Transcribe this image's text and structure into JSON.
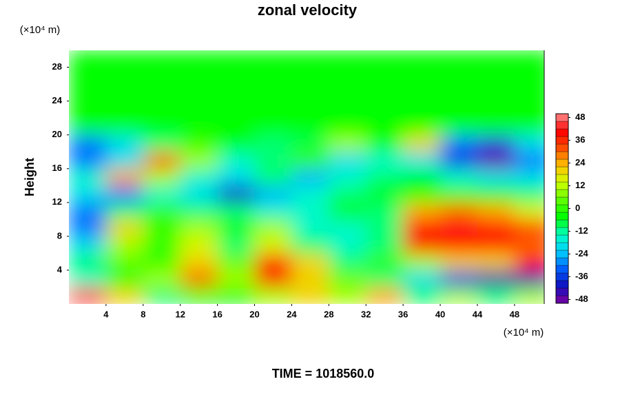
{
  "chart_data": {
    "type": "heatmap",
    "title": "zonal velocity",
    "y_label": "Height",
    "x_unit": "(×10⁴ m)",
    "y_unit": "(×10⁴ m)",
    "footer": "TIME = 1018560.0",
    "xlim": [
      0,
      51.2
    ],
    "ylim": [
      0,
      30
    ],
    "xticks": [
      4,
      8,
      12,
      16,
      20,
      24,
      28,
      32,
      36,
      40,
      44,
      48
    ],
    "yticks": [
      4,
      8,
      12,
      16,
      20,
      24,
      28
    ],
    "x": [
      2,
      6,
      10,
      14,
      18,
      22,
      26,
      30,
      34,
      38,
      42,
      46,
      50
    ],
    "y": [
      1,
      3,
      5,
      7,
      9,
      11,
      13,
      15,
      17,
      19,
      21,
      23,
      25,
      27,
      29
    ],
    "z": [
      [
        45,
        20,
        -10,
        -5,
        -5,
        10,
        20,
        10,
        25,
        -10,
        10,
        -10,
        10
      ],
      [
        -15,
        -5,
        10,
        30,
        10,
        40,
        20,
        5,
        -10,
        -20,
        -36,
        -44,
        -44
      ],
      [
        -10,
        5,
        0,
        20,
        5,
        35,
        20,
        -10,
        0,
        10,
        20,
        20,
        40
      ],
      [
        -20,
        10,
        0,
        15,
        -10,
        15,
        -10,
        -15,
        -10,
        40,
        40,
        38,
        30
      ],
      [
        -30,
        20,
        0,
        10,
        -5,
        10,
        -15,
        -15,
        -10,
        40,
        42,
        40,
        35
      ],
      [
        -30,
        -10,
        0,
        -10,
        -10,
        -15,
        -15,
        -5,
        -10,
        25,
        30,
        25,
        15
      ],
      [
        -20,
        -30,
        -15,
        -20,
        -40,
        -25,
        -15,
        -10,
        -5,
        -5,
        0,
        -5,
        -10
      ],
      [
        -15,
        25,
        10,
        -15,
        -20,
        -10,
        -25,
        -15,
        -10,
        -5,
        -15,
        -20,
        -20
      ],
      [
        -30,
        -20,
        30,
        10,
        -15,
        -10,
        0,
        -20,
        -15,
        -20,
        -36,
        -48,
        -30
      ],
      [
        -30,
        -20,
        -10,
        0,
        -5,
        -10,
        -8,
        10,
        -5,
        20,
        -30,
        -36,
        -20
      ],
      [
        -4,
        -4,
        -4,
        -4,
        -4,
        -4,
        -4,
        -4,
        -4,
        -4,
        -4,
        -4,
        -4
      ],
      [
        -4,
        -4,
        -4,
        -4,
        -4,
        -4,
        -4,
        -4,
        -4,
        -4,
        -4,
        -4,
        -4
      ],
      [
        -4,
        -4,
        -4,
        -4,
        -4,
        -4,
        -4,
        -4,
        -4,
        -4,
        -4,
        -4,
        -4
      ],
      [
        -4,
        -4,
        -4,
        -4,
        -4,
        -4,
        -4,
        -4,
        -4,
        -4,
        -4,
        -4,
        -4
      ],
      [
        -4,
        -4,
        -4,
        -4,
        -4,
        -4,
        -4,
        -4,
        -4,
        -4,
        -4,
        -4,
        -4
      ]
    ],
    "clim": [
      -50,
      50
    ],
    "cticks": [
      48,
      36,
      24,
      12,
      0,
      -12,
      -24,
      -36,
      -48
    ],
    "colors": [
      "#8000a0",
      "#1010c0",
      "#0060ff",
      "#00d0ff",
      "#00ffc0",
      "#00ff00",
      "#60ff00",
      "#d0ff00",
      "#ffc000",
      "#ff5000",
      "#ff0000",
      "#ff9090"
    ]
  }
}
